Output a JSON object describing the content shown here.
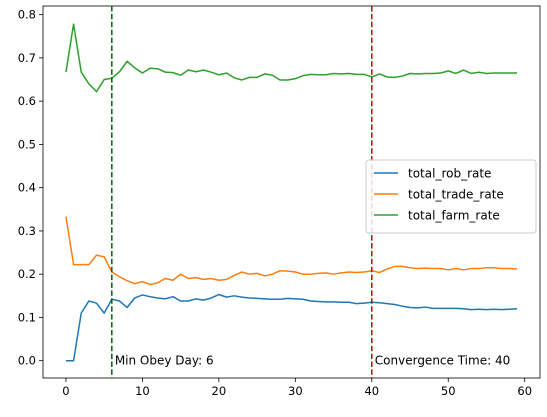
{
  "chart_data": {
    "type": "line",
    "title": "",
    "xlabel": "",
    "ylabel": "",
    "xlim": [
      -3,
      62
    ],
    "ylim": [
      -0.04,
      0.82
    ],
    "xticks": [
      0,
      10,
      20,
      30,
      40,
      50,
      60
    ],
    "yticks": [
      0.0,
      0.1,
      0.2,
      0.3,
      0.4,
      0.5,
      0.6,
      0.7,
      0.8
    ],
    "xtick_labels": [
      "0",
      "10",
      "20",
      "30",
      "40",
      "50",
      "60"
    ],
    "ytick_labels": [
      "0.0",
      "0.1",
      "0.2",
      "0.3",
      "0.4",
      "0.5",
      "0.6",
      "0.7",
      "0.8"
    ],
    "grid": false,
    "legend_position": "center-right",
    "x": [
      0,
      1,
      2,
      3,
      4,
      5,
      6,
      7,
      8,
      9,
      10,
      11,
      12,
      13,
      14,
      15,
      16,
      17,
      18,
      19,
      20,
      21,
      22,
      23,
      24,
      25,
      26,
      27,
      28,
      29,
      30,
      31,
      32,
      33,
      34,
      35,
      36,
      37,
      38,
      39,
      40,
      41,
      42,
      43,
      44,
      45,
      46,
      47,
      48,
      49,
      50,
      51,
      52,
      53,
      54,
      55,
      56,
      57,
      58,
      59
    ],
    "series": [
      {
        "name": "total_rob_rate",
        "color": "#1f77b4",
        "values": [
          0.0,
          0.0,
          0.11,
          0.138,
          0.133,
          0.11,
          0.142,
          0.138,
          0.123,
          0.145,
          0.152,
          0.148,
          0.145,
          0.143,
          0.148,
          0.138,
          0.138,
          0.143,
          0.14,
          0.145,
          0.153,
          0.147,
          0.15,
          0.147,
          0.145,
          0.144,
          0.143,
          0.142,
          0.142,
          0.144,
          0.143,
          0.142,
          0.138,
          0.137,
          0.136,
          0.136,
          0.135,
          0.135,
          0.132,
          0.133,
          0.135,
          0.134,
          0.132,
          0.13,
          0.126,
          0.123,
          0.122,
          0.124,
          0.121,
          0.121,
          0.121,
          0.121,
          0.12,
          0.118,
          0.119,
          0.118,
          0.119,
          0.118,
          0.119,
          0.12
        ]
      },
      {
        "name": "total_trade_rate",
        "color": "#ff7f0e",
        "values": [
          0.333,
          0.222,
          0.222,
          0.222,
          0.244,
          0.24,
          0.205,
          0.194,
          0.185,
          0.178,
          0.183,
          0.176,
          0.18,
          0.19,
          0.186,
          0.2,
          0.19,
          0.192,
          0.188,
          0.19,
          0.186,
          0.188,
          0.197,
          0.205,
          0.2,
          0.202,
          0.196,
          0.2,
          0.208,
          0.207,
          0.205,
          0.2,
          0.2,
          0.202,
          0.203,
          0.2,
          0.203,
          0.205,
          0.204,
          0.205,
          0.208,
          0.204,
          0.212,
          0.218,
          0.218,
          0.215,
          0.213,
          0.214,
          0.213,
          0.213,
          0.21,
          0.213,
          0.21,
          0.213,
          0.213,
          0.215,
          0.215,
          0.213,
          0.213,
          0.212
        ]
      },
      {
        "name": "total_farm_rate",
        "color": "#2ca02c",
        "values": [
          0.667,
          0.778,
          0.667,
          0.64,
          0.622,
          0.65,
          0.653,
          0.668,
          0.692,
          0.677,
          0.665,
          0.676,
          0.675,
          0.667,
          0.666,
          0.66,
          0.672,
          0.668,
          0.672,
          0.667,
          0.661,
          0.665,
          0.654,
          0.649,
          0.655,
          0.655,
          0.663,
          0.66,
          0.649,
          0.649,
          0.652,
          0.659,
          0.662,
          0.661,
          0.661,
          0.664,
          0.663,
          0.664,
          0.662,
          0.662,
          0.656,
          0.663,
          0.656,
          0.655,
          0.658,
          0.664,
          0.663,
          0.664,
          0.664,
          0.665,
          0.67,
          0.664,
          0.672,
          0.664,
          0.667,
          0.664,
          0.665,
          0.665,
          0.665,
          0.665
        ]
      }
    ],
    "vlines": [
      {
        "x": 6,
        "color": "#006400",
        "style": "dashed",
        "label": "Min Obey Day: 6"
      },
      {
        "x": 40,
        "color": "#cc0000",
        "style": "dashed",
        "label": "Convergence Time: 40"
      }
    ]
  }
}
